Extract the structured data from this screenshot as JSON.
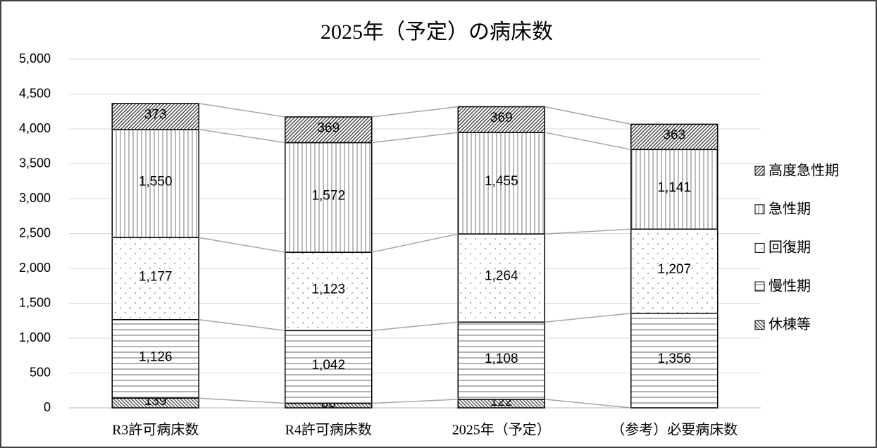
{
  "chart_data": {
    "type": "stacked_bar",
    "title": "2025年（予定）の病床数",
    "categories": [
      "R3許可病床数",
      "R4許可病床数",
      "2025年（予定）",
      "（参考）必要病床数"
    ],
    "ylim": [
      0,
      5000
    ],
    "yticks": [
      0,
      {
        "value": 500,
        "label": "500"
      },
      {
        "value": 1000,
        "label": "1,000"
      },
      {
        "value": 1500,
        "label": "1,500"
      },
      {
        "value": 2000,
        "label": "2,000"
      },
      {
        "value": 2500,
        "label": "2,500"
      },
      {
        "value": 3000,
        "label": "3,000"
      },
      {
        "value": 3500,
        "label": "3,500"
      },
      {
        "value": 4000,
        "label": "4,000"
      },
      {
        "value": 4500,
        "label": "4,500"
      },
      {
        "value": 5000,
        "label": "5,000"
      }
    ],
    "grid": true,
    "legend": "right",
    "series": [
      {
        "name": "休棟等",
        "color": "#555555",
        "pattern": "backslash",
        "values": [
          139,
          66,
          122,
          null
        ],
        "value_labels": [
          "139",
          "66",
          "122",
          null
        ]
      },
      {
        "name": "慢性期",
        "color": "#666666",
        "pattern": "horizontal",
        "values": [
          1126,
          1042,
          1108,
          1356
        ],
        "value_labels": [
          "1,126",
          "1,042",
          "1,108",
          "1,356"
        ]
      },
      {
        "name": "回復期",
        "color": "#777777",
        "pattern": "dots",
        "values": [
          1177,
          1123,
          1264,
          1207
        ],
        "value_labels": [
          "1,177",
          "1,123",
          "1,264",
          "1,207"
        ]
      },
      {
        "name": "急性期",
        "color": "#777777",
        "pattern": "vertical",
        "values": [
          1550,
          1572,
          1455,
          1141
        ],
        "value_labels": [
          "1,550",
          "1,572",
          "1,455",
          "1,141"
        ]
      },
      {
        "name": "高度急性期",
        "color": "#333333",
        "pattern": "slash",
        "values": [
          373,
          369,
          369,
          363
        ],
        "value_labels": [
          "373",
          "369",
          "369",
          "363"
        ]
      }
    ]
  }
}
